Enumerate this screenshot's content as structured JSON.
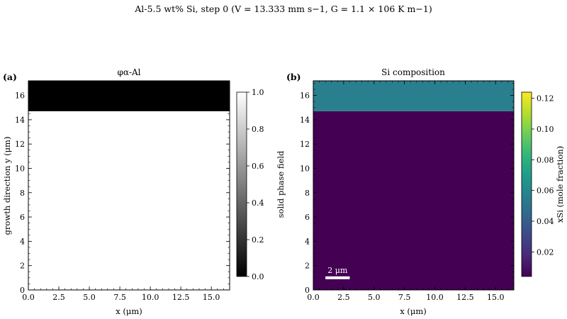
{
  "figure": {
    "title": "Al-5.5 wt% Si, step 0 (V = 13.333 mm s−1, G = 1.1 × 106 K m−1)"
  },
  "chart_data": [
    {
      "type": "heatmap",
      "panel_label": "(a)",
      "title": "φα-Al",
      "xlabel": "x (μm)",
      "ylabel": "growth direction y (μm)",
      "xlim": [
        0.0,
        16.5
      ],
      "ylim": [
        0,
        17.2
      ],
      "xticks": [
        0.0,
        2.5,
        5.0,
        7.5,
        10.0,
        12.5,
        15.0
      ],
      "xtick_labels": [
        "0.0",
        "2.5",
        "5.0",
        "7.5",
        "10.0",
        "12.5",
        "15.0"
      ],
      "yticks": [
        0,
        2,
        4,
        6,
        8,
        10,
        12,
        14,
        16
      ],
      "ytick_labels": [
        "0",
        "2",
        "4",
        "6",
        "8",
        "10",
        "12",
        "14",
        "16"
      ],
      "colormap": "gray",
      "regions": [
        {
          "y_from": 0,
          "y_to": 14.7,
          "value": 1.0,
          "color": "#ffffff"
        },
        {
          "y_from": 14.7,
          "y_to": 17.2,
          "value": 0.0,
          "color": "#000000"
        }
      ],
      "colorbar": {
        "label": "solid phase field",
        "min": 0.0,
        "max": 1.0,
        "ticks": [
          0.0,
          0.2,
          0.4,
          0.6,
          0.8,
          1.0
        ],
        "tick_labels": [
          "0.0",
          "0.2",
          "0.4",
          "0.6",
          "0.8",
          "1.0"
        ],
        "colors": [
          "#000000",
          "#ffffff"
        ]
      }
    },
    {
      "type": "heatmap",
      "panel_label": "(b)",
      "title": "Si composition",
      "xlabel": "x (μm)",
      "ylabel": "",
      "xlim": [
        0.0,
        16.5
      ],
      "ylim": [
        0,
        17.2
      ],
      "xticks": [
        0.0,
        2.5,
        5.0,
        7.5,
        10.0,
        12.5,
        15.0
      ],
      "xtick_labels": [
        "0.0",
        "2.5",
        "5.0",
        "7.5",
        "10.0",
        "12.5",
        "15.0"
      ],
      "yticks": [
        0,
        2,
        4,
        6,
        8,
        10,
        12,
        14,
        16
      ],
      "ytick_labels": [
        "0",
        "2",
        "4",
        "6",
        "8",
        "10",
        "12",
        "14",
        "16"
      ],
      "colormap": "viridis",
      "regions": [
        {
          "y_from": 0,
          "y_to": 14.7,
          "value": 0.005,
          "color": "#440154"
        },
        {
          "y_from": 14.7,
          "y_to": 17.2,
          "value": 0.054,
          "color": "#2a7f8e"
        }
      ],
      "scale_bar": {
        "label": "2 μm",
        "x_from": 1.0,
        "x_to": 3.0,
        "y": 1.0
      },
      "colorbar": {
        "label": "xSi (mole fraction)",
        "min": 0.004,
        "max": 0.124,
        "ticks": [
          0.02,
          0.04,
          0.06,
          0.08,
          0.1,
          0.12
        ],
        "tick_labels": [
          "0.02",
          "0.04",
          "0.06",
          "0.08",
          "0.10",
          "0.12"
        ],
        "colors": [
          "#440154",
          "#482878",
          "#3e4989",
          "#31688e",
          "#26828e",
          "#1f9e89",
          "#35b779",
          "#6ece58",
          "#b5de2b",
          "#fde725"
        ]
      }
    }
  ]
}
